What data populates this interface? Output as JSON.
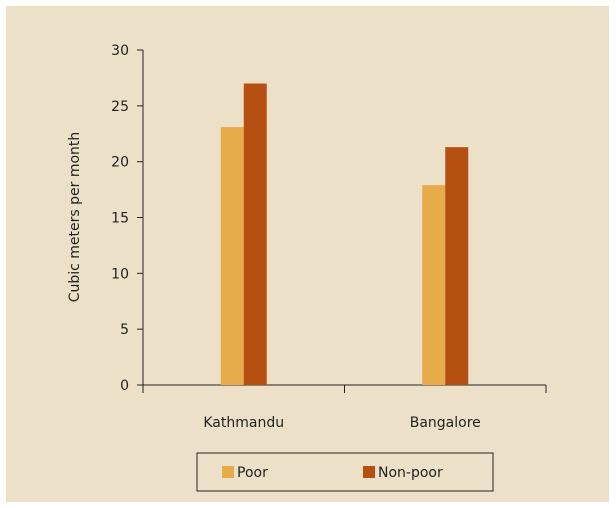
{
  "chart_data": {
    "type": "bar",
    "title": "",
    "xlabel": "",
    "ylabel": "Cubic meters per month",
    "ylim": [
      0,
      30
    ],
    "yticks": [
      0,
      5,
      10,
      15,
      20,
      25,
      30
    ],
    "categories": [
      "Kathmandu",
      "Bangalore"
    ],
    "series": [
      {
        "name": "Poor",
        "values": [
          23.1,
          17.9
        ],
        "color": "#e8ab4a"
      },
      {
        "name": "Non-poor",
        "values": [
          27.0,
          21.3
        ],
        "color": "#b54f12"
      }
    ],
    "grid": false,
    "legend": "bottom-center",
    "background_color": "#ede0c9"
  }
}
